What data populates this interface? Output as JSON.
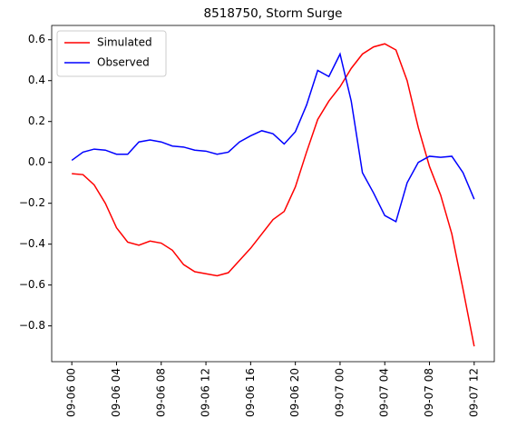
{
  "chart_data": {
    "type": "line",
    "title": "8518750, Storm Surge",
    "x": [
      "09-06 00",
      "09-06 01",
      "09-06 02",
      "09-06 03",
      "09-06 04",
      "09-06 05",
      "09-06 06",
      "09-06 07",
      "09-06 08",
      "09-06 09",
      "09-06 10",
      "09-06 11",
      "09-06 12",
      "09-06 13",
      "09-06 14",
      "09-06 15",
      "09-06 16",
      "09-06 17",
      "09-06 18",
      "09-06 19",
      "09-06 20",
      "09-06 21",
      "09-06 22",
      "09-06 23",
      "09-07 00",
      "09-07 01",
      "09-07 02",
      "09-07 03",
      "09-07 04",
      "09-07 05",
      "09-07 06",
      "09-07 07",
      "09-07 08",
      "09-07 09",
      "09-07 10",
      "09-07 11",
      "09-07 12"
    ],
    "series": [
      {
        "name": "Simulated",
        "color": "#ff0000",
        "values": [
          -0.055,
          -0.06,
          -0.11,
          -0.2,
          -0.32,
          -0.39,
          -0.405,
          -0.385,
          -0.395,
          -0.43,
          -0.5,
          -0.535,
          -0.545,
          -0.555,
          -0.54,
          -0.48,
          -0.42,
          -0.35,
          -0.28,
          -0.24,
          -0.12,
          0.05,
          0.21,
          0.3,
          0.37,
          0.46,
          0.53,
          0.565,
          0.58,
          0.55,
          0.4,
          0.17,
          -0.02,
          -0.16,
          -0.35,
          -0.62,
          -0.9
        ]
      },
      {
        "name": "Observed",
        "color": "#0000ff",
        "values": [
          0.01,
          0.05,
          0.065,
          0.06,
          0.04,
          0.04,
          0.1,
          0.11,
          0.1,
          0.08,
          0.075,
          0.06,
          0.055,
          0.04,
          0.05,
          0.1,
          0.13,
          0.155,
          0.14,
          0.09,
          0.15,
          0.28,
          0.45,
          0.42,
          0.53,
          0.3,
          -0.05,
          -0.15,
          -0.26,
          -0.29,
          -0.1,
          0.0,
          0.03,
          0.025,
          0.03,
          -0.05,
          -0.18
        ]
      }
    ],
    "xticks": [
      "09-06 00",
      "09-06 04",
      "09-06 08",
      "09-06 12",
      "09-06 16",
      "09-06 20",
      "09-07 00",
      "09-07 04",
      "09-07 08",
      "09-07 12"
    ],
    "ylim": [
      -0.975,
      0.67
    ],
    "yticks": [
      {
        "value": -0.8,
        "label": "−0.8"
      },
      {
        "value": -0.6,
        "label": "−0.6"
      },
      {
        "value": -0.4,
        "label": "−0.4"
      },
      {
        "value": -0.2,
        "label": "−0.2"
      },
      {
        "value": 0,
        "label": "0.0"
      },
      0.2,
      0.4,
      0.6
    ],
    "legend": "upper left"
  }
}
